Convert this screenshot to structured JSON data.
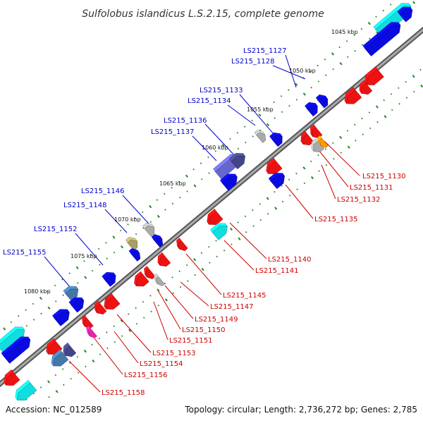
{
  "title": "Sulfolobus islandicus L.S.2.15, complete genome",
  "footer": {
    "accession": "Accession: NC_012589",
    "summary": "Topology: circular; Length: 2,736,272 bp; Genes: 2,785"
  },
  "scale": {
    "labels": [
      "1045 kbp",
      "1050 kbp",
      "1055 kbp",
      "1060 kbp",
      "1065 kbp",
      "1070 kbp",
      "1075 kbp",
      "1080 kbp"
    ]
  },
  "genes_upper": [
    "LS215_1127",
    "LS215_1128",
    "LS215_1133",
    "LS215_1134",
    "LS215_1136",
    "LS215_1137",
    "LS215_1146",
    "LS215_1148",
    "LS215_1152",
    "LS215_1155"
  ],
  "genes_lower": [
    "LS215_1130",
    "LS215_1131",
    "LS215_1132",
    "LS215_1135",
    "LS215_1140",
    "LS215_1141",
    "LS215_1145",
    "LS215_1147",
    "LS215_1149",
    "LS215_1150",
    "LS215_1151",
    "LS215_1153",
    "LS215_1154",
    "LS215_1156",
    "LS215_1158"
  ],
  "colors": {
    "forward_label": "#0000cc",
    "reverse_label": "#cc0000",
    "backbone": "#888888",
    "tick": "#228822",
    "blue": "#0a0ae0",
    "red": "#ee1111",
    "cyan": "#11dddd",
    "slate": "#6666cc",
    "gray": "#aaaaaa",
    "olive": "#aaa066",
    "orange": "#ff9900",
    "magenta": "#ee22aa",
    "steel": "#4477aa",
    "dark_navy": "#444488"
  }
}
